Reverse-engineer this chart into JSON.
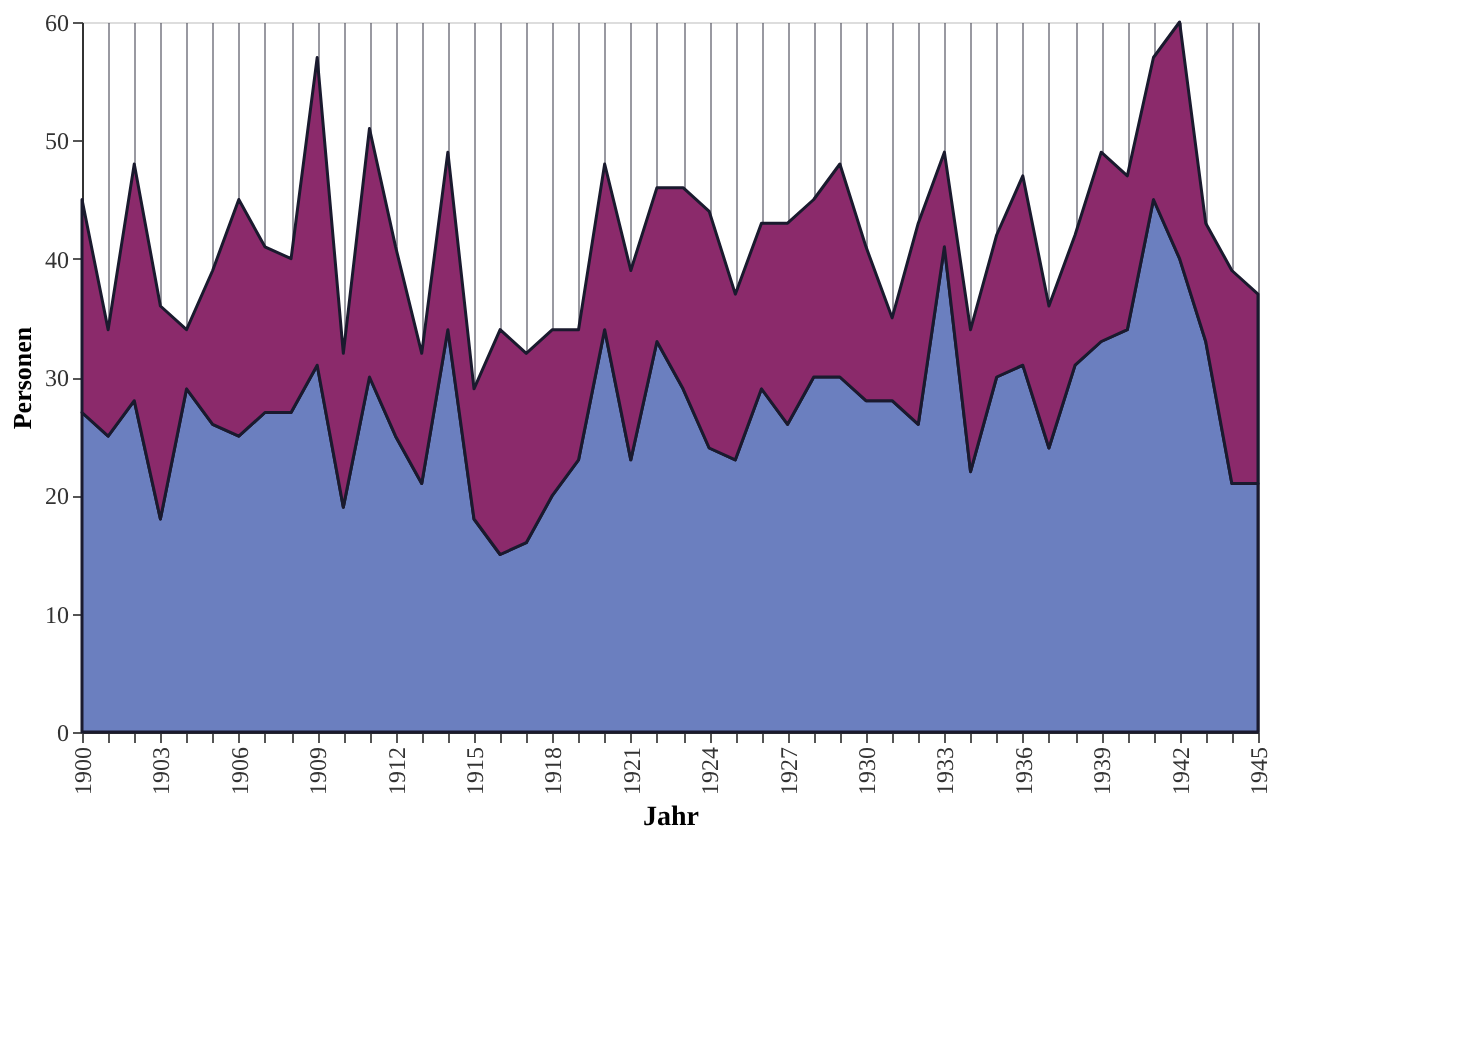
{
  "chart_data": {
    "type": "area",
    "stacked": true,
    "xlabel": "Jahr",
    "ylabel": "Personen",
    "x": [
      1900,
      1901,
      1902,
      1903,
      1904,
      1905,
      1906,
      1907,
      1908,
      1909,
      1910,
      1911,
      1912,
      1913,
      1914,
      1915,
      1916,
      1917,
      1918,
      1919,
      1920,
      1921,
      1922,
      1923,
      1924,
      1925,
      1926,
      1927,
      1928,
      1929,
      1930,
      1931,
      1932,
      1933,
      1934,
      1935,
      1936,
      1937,
      1938,
      1939,
      1940,
      1941,
      1942,
      1943,
      1944,
      1945
    ],
    "series": [
      {
        "color": "#6b7fbf",
        "values": [
          27,
          25,
          28,
          18,
          29,
          26,
          25,
          27,
          27,
          31,
          19,
          30,
          25,
          21,
          34,
          18,
          15,
          16,
          20,
          23,
          34,
          23,
          33,
          29,
          24,
          23,
          29,
          26,
          30,
          30,
          28,
          28,
          26,
          41,
          22,
          30,
          31,
          24,
          31,
          33,
          34,
          45,
          40,
          33,
          21,
          21
        ]
      },
      {
        "color": "#8b2a6b",
        "values": [
          18,
          9,
          20,
          18,
          5,
          13,
          20,
          14,
          13,
          26,
          13,
          21,
          16,
          11,
          15,
          11,
          19,
          16,
          14,
          11,
          14,
          16,
          13,
          17,
          20,
          14,
          14,
          17,
          15,
          18,
          13,
          7,
          17,
          8,
          12,
          12,
          16,
          12,
          11,
          16,
          13,
          12,
          20,
          10,
          18,
          16
        ]
      }
    ],
    "xlim": [
      1900,
      1945
    ],
    "xticks": [
      1900,
      {
        "value": 1901,
        "label": null
      },
      {
        "value": 1902,
        "label": null
      },
      1903,
      {
        "value": 1904,
        "label": null
      },
      {
        "value": 1905,
        "label": null
      },
      1906,
      {
        "value": 1907,
        "label": null
      },
      {
        "value": 1908,
        "label": null
      },
      1909,
      {
        "value": 1910,
        "label": null
      },
      {
        "value": 1911,
        "label": null
      },
      1912,
      {
        "value": 1913,
        "label": null
      },
      {
        "value": 1914,
        "label": null
      },
      1915,
      {
        "value": 1916,
        "label": null
      },
      {
        "value": 1917,
        "label": null
      },
      1918,
      {
        "value": 1919,
        "label": null
      },
      {
        "value": 1920,
        "label": null
      },
      1921,
      {
        "value": 1922,
        "label": null
      },
      {
        "value": 1923,
        "label": null
      },
      1924,
      {
        "value": 1925,
        "label": null
      },
      {
        "value": 1926,
        "label": null
      },
      1927,
      {
        "value": 1928,
        "label": null
      },
      {
        "value": 1929,
        "label": null
      },
      1930,
      {
        "value": 1931,
        "label": null
      },
      {
        "value": 1932,
        "label": null
      },
      1933,
      {
        "value": 1934,
        "label": null
      },
      {
        "value": 1935,
        "label": null
      },
      1936,
      {
        "value": 1937,
        "label": null
      },
      {
        "value": 1938,
        "label": null
      },
      1939,
      {
        "value": 1940,
        "label": null
      },
      {
        "value": 1941,
        "label": null
      },
      1942,
      {
        "value": 1943,
        "label": null
      },
      {
        "value": 1944,
        "label": null
      },
      1945
    ],
    "ylim": [
      0,
      60
    ],
    "yticks": [
      0,
      10,
      20,
      30,
      40,
      50,
      60
    ],
    "grid": "x",
    "legend": false
  }
}
